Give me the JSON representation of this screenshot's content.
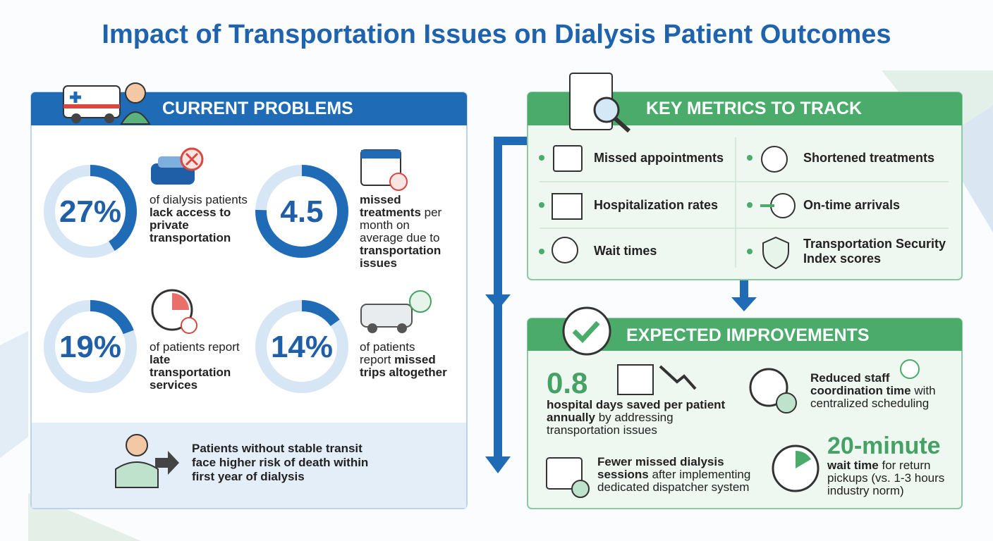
{
  "title": "Impact of Transportation Issues on Dialysis Patient Outcomes",
  "problems": {
    "title": "CURRENT PROBLEMS",
    "stats": [
      {
        "value": "27%",
        "text": [
          "of dialysis patients ",
          "lack access to private transportation"
        ]
      },
      {
        "value": "4.5",
        "text": [
          "missed treatments",
          " per month on average due to ",
          "transportation issues"
        ]
      },
      {
        "value": "19%",
        "text": [
          "of patients report ",
          "late transportation services"
        ]
      },
      {
        "value": "14%",
        "text": [
          "of patients report ",
          "missed trips altogether"
        ]
      }
    ],
    "note": "Patients without stable transit face higher risk of death within first year of dialysis"
  },
  "metrics": {
    "title": "KEY METRICS TO TRACK",
    "items": [
      "Missed appointments",
      "Shortened treatments",
      "Hospitalization rates",
      "On-time arrivals",
      "Wait times",
      "Transportation Security Index scores"
    ]
  },
  "improvements": {
    "title": "EXPECTED IMPROVEMENTS",
    "items": [
      {
        "value": "0.8",
        "text": [
          "hospital days saved per patient annually",
          " by addressing transportation issues"
        ]
      },
      {
        "text": [
          "Reduced staff coordination time",
          " with centralized scheduling"
        ]
      },
      {
        "text": [
          "Fewer missed dialysis sessions",
          " after implementing dedicated dispatcher system"
        ]
      },
      {
        "value": "20-minute",
        "text": [
          "wait time",
          " for return pickups (vs. 1-3 hours industry norm)"
        ]
      }
    ]
  }
}
